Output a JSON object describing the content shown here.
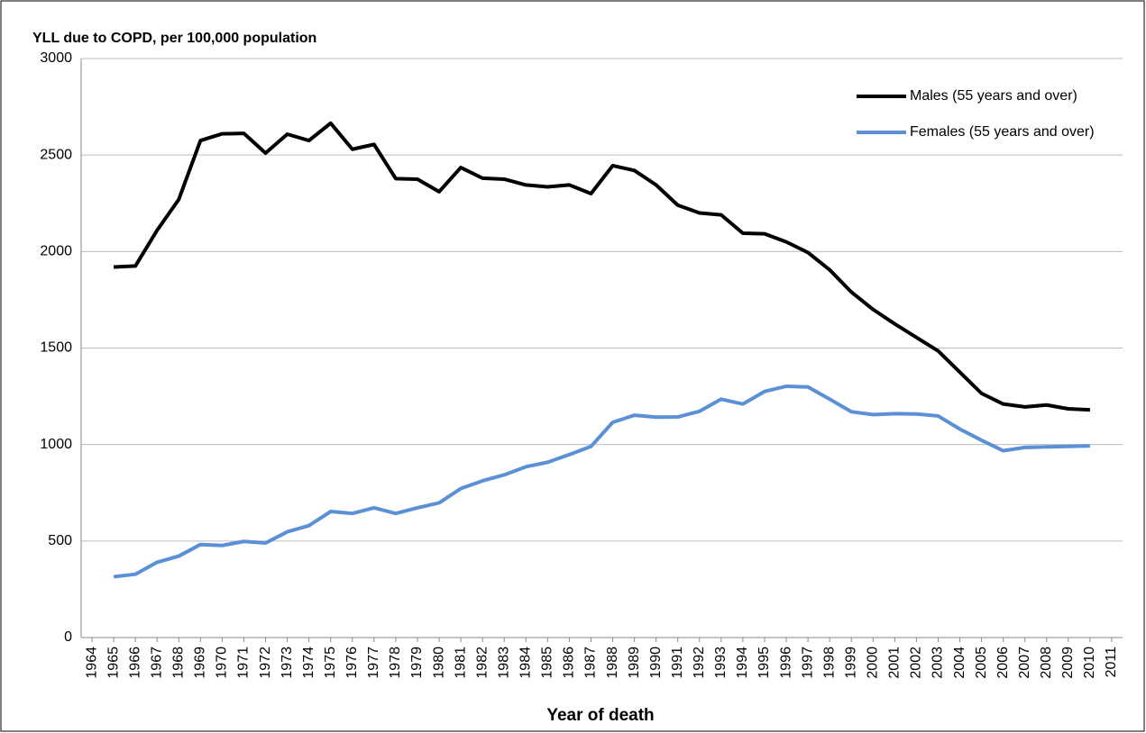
{
  "chart_data": {
    "type": "line",
    "title": "YLL due to COPD, per 100,000 population",
    "x_label": "Year of death",
    "x": [
      1965,
      1966,
      1967,
      1968,
      1969,
      1970,
      1971,
      1972,
      1973,
      1974,
      1975,
      1976,
      1977,
      1978,
      1979,
      1980,
      1981,
      1982,
      1983,
      1984,
      1985,
      1986,
      1987,
      1988,
      1989,
      1990,
      1991,
      1992,
      1993,
      1994,
      1995,
      1996,
      1997,
      1998,
      1999,
      2000,
      2001,
      2002,
      2003,
      2004,
      2005,
      2006,
      2007,
      2008,
      2009,
      2010
    ],
    "series": [
      {
        "name": "Males (55 years and over)",
        "color": "#000000",
        "values": [
          1920,
          1925,
          2110,
          2270,
          2575,
          2610,
          2612,
          2510,
          2608,
          2575,
          2665,
          2530,
          2555,
          2378,
          2375,
          2310,
          2435,
          2380,
          2375,
          2345,
          2335,
          2345,
          2300,
          2445,
          2420,
          2345,
          2240,
          2200,
          2190,
          2095,
          2092,
          2050,
          1995,
          1905,
          1790,
          1700,
          1625,
          1555,
          1485,
          1375,
          1265,
          1210,
          1195,
          1205,
          1185,
          1180
        ]
      },
      {
        "name": "Females (55 years and over)",
        "color": "#5b8fd6",
        "values": [
          315,
          328,
          390,
          422,
          482,
          477,
          498,
          490,
          548,
          580,
          653,
          643,
          672,
          643,
          672,
          698,
          772,
          812,
          843,
          885,
          908,
          948,
          990,
          1115,
          1152,
          1142,
          1143,
          1172,
          1235,
          1210,
          1275,
          1302,
          1298,
          1235,
          1170,
          1155,
          1160,
          1158,
          1148,
          1080,
          1022,
          968,
          985,
          988,
          990,
          993
        ]
      }
    ],
    "xlim": [
      1963.5,
      2011.5
    ],
    "xticks": [
      1964,
      1965,
      1966,
      1967,
      1968,
      1969,
      1970,
      1971,
      1972,
      1973,
      1974,
      1975,
      1976,
      1977,
      1978,
      1979,
      1980,
      1981,
      1982,
      1983,
      1984,
      1985,
      1986,
      1987,
      1988,
      1989,
      1990,
      1991,
      1992,
      1993,
      1994,
      1995,
      1996,
      1997,
      1998,
      1999,
      2000,
      2001,
      2002,
      2003,
      2004,
      2005,
      2006,
      2007,
      2008,
      2009,
      2010,
      2011
    ],
    "ylim": [
      0,
      3000
    ],
    "yticks": [
      0,
      500,
      1000,
      1500,
      2000,
      2500,
      3000
    ],
    "grid": true,
    "legend": "upper right"
  }
}
